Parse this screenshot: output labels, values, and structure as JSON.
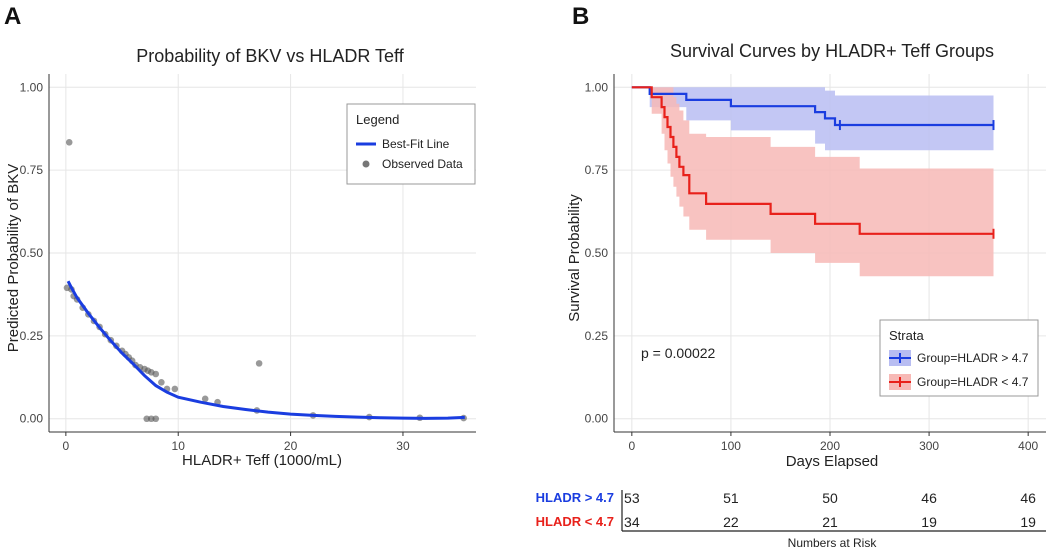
{
  "chart_data": [
    {
      "panel": "A",
      "type": "scatter",
      "title": "Probability of BKV vs HLADR Teff",
      "xlabel": "HLADR+ Teff (1000/mL)",
      "ylabel": "Predicted Probability of BKV",
      "xlim": [
        -1.5,
        36.5
      ],
      "ylim": [
        -0.04,
        1.04
      ],
      "xticks": [
        0,
        10,
        20,
        30
      ],
      "xtick_labels": [
        "0",
        "10",
        "20",
        "30"
      ],
      "yticks": [
        0,
        0.25,
        0.5,
        0.75,
        1.0
      ],
      "ytick_labels": [
        "0.00",
        "0.25",
        "0.50",
        "0.75",
        "1.00"
      ],
      "legend": {
        "title": "Legend",
        "line_label": "Best-Fit Line",
        "points_label": "Observed Data"
      },
      "colors": {
        "line": "#1a3de0",
        "points": "#555555"
      },
      "fit_line": {
        "x": [
          0.2,
          0.5,
          1,
          2,
          3,
          4,
          5,
          6,
          7,
          8,
          9,
          10,
          12,
          14,
          16,
          18,
          20,
          22,
          24,
          26,
          28,
          30,
          32,
          34,
          35.5
        ],
        "y": [
          0.415,
          0.395,
          0.365,
          0.318,
          0.275,
          0.235,
          0.198,
          0.165,
          0.13,
          0.1,
          0.08,
          0.065,
          0.05,
          0.037,
          0.028,
          0.02,
          0.014,
          0.01,
          0.007,
          0.005,
          0.003,
          0.002,
          0.001,
          0.002,
          0.004
        ]
      },
      "points": {
        "x": [
          0.3,
          0.1,
          0.5,
          0.7,
          1.0,
          1.5,
          2.0,
          2.5,
          3.0,
          3.5,
          4.0,
          4.5,
          5.0,
          5.3,
          5.6,
          5.9,
          6.2,
          6.6,
          7.0,
          7.3,
          7.6,
          8.0,
          8.5,
          9.0,
          9.7,
          12.4,
          13.5,
          17.0,
          7.2,
          7.6,
          8.0,
          22.0,
          27.0,
          31.5,
          35.4,
          17.2
        ],
        "y": [
          0.834,
          0.395,
          0.39,
          0.37,
          0.36,
          0.335,
          0.315,
          0.295,
          0.277,
          0.255,
          0.237,
          0.22,
          0.205,
          0.195,
          0.185,
          0.175,
          0.162,
          0.155,
          0.15,
          0.145,
          0.14,
          0.135,
          0.11,
          0.09,
          0.09,
          0.06,
          0.05,
          0.025,
          0.0,
          0.0,
          0.0,
          0.01,
          0.005,
          0.003,
          0.002,
          0.167
        ]
      }
    },
    {
      "panel": "B",
      "type": "line",
      "title": "Survival Curves by HLADR+ Teff Groups",
      "xlabel": "Days Elapsed",
      "ylabel": "Survival Probability",
      "xlim": [
        -18,
        418
      ],
      "ylim": [
        -0.04,
        1.04
      ],
      "xticks": [
        0,
        100,
        200,
        300,
        400
      ],
      "xtick_labels": [
        "0",
        "100",
        "200",
        "300",
        "400"
      ],
      "yticks": [
        0,
        0.25,
        0.5,
        0.75,
        1.0
      ],
      "ytick_labels": [
        "0.00",
        "0.25",
        "0.50",
        "0.75",
        "1.00"
      ],
      "annotation": "p = 0.00022",
      "legend": {
        "title": "Strata"
      },
      "series": [
        {
          "name": "Group=HLADR > 4.7",
          "color": "#1a3de0",
          "fill": "#b8bdf2",
          "times": [
            0,
            18,
            55,
            100,
            185,
            195,
            205,
            365
          ],
          "surv": [
            1.0,
            0.98,
            0.962,
            0.943,
            0.925,
            0.906,
            0.886,
            0.886
          ],
          "lower": [
            1.0,
            0.94,
            0.9,
            0.87,
            0.83,
            0.81,
            0.81,
            0.81
          ],
          "upper": [
            1.0,
            1.0,
            1.0,
            1.0,
            1.0,
            0.99,
            0.975,
            0.975
          ],
          "censor_times": [
            210,
            365
          ],
          "censor_surv": [
            0.886,
            0.886
          ]
        },
        {
          "name": "Group=HLADR < 4.7",
          "color": "#e8211b",
          "fill": "#f7b9b6",
          "times": [
            0,
            20,
            30,
            33,
            36,
            39,
            42,
            45,
            48,
            52,
            58,
            75,
            140,
            185,
            230,
            365
          ],
          "surv": [
            1.0,
            0.97,
            0.94,
            0.91,
            0.88,
            0.85,
            0.82,
            0.79,
            0.76,
            0.735,
            0.68,
            0.648,
            0.618,
            0.588,
            0.558,
            0.558
          ],
          "lower": [
            1.0,
            0.92,
            0.86,
            0.81,
            0.77,
            0.73,
            0.7,
            0.67,
            0.64,
            0.61,
            0.57,
            0.54,
            0.5,
            0.47,
            0.43,
            0.415
          ],
          "upper": [
            1.0,
            1.0,
            1.0,
            1.0,
            1.0,
            1.0,
            0.97,
            0.95,
            0.93,
            0.9,
            0.86,
            0.85,
            0.82,
            0.79,
            0.755,
            0.755
          ],
          "censor_times": [
            365
          ],
          "censor_surv": [
            0.558
          ]
        }
      ],
      "risk_table": {
        "title": "Numbers at Risk",
        "rows": [
          {
            "label": "HLADR > 4.7",
            "color": "#1a3de0",
            "values": [
              "53",
              "51",
              "50",
              "46",
              "46"
            ]
          },
          {
            "label": "HLADR < 4.7",
            "color": "#e8211b",
            "values": [
              "34",
              "22",
              "21",
              "19",
              "19"
            ]
          }
        ]
      }
    }
  ],
  "labels": {
    "panel_a": "A",
    "panel_b": "B"
  }
}
